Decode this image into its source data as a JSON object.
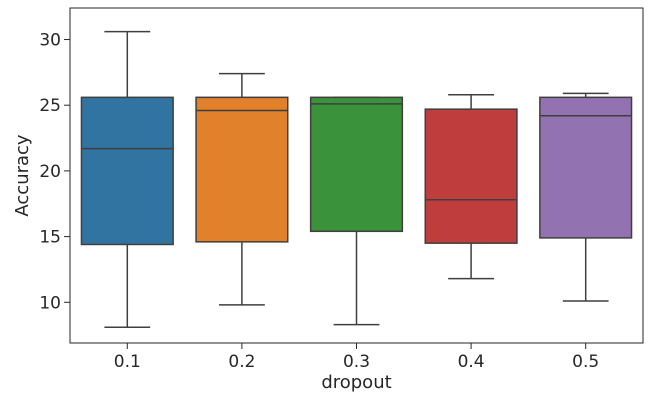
{
  "chart_data": {
    "type": "box",
    "title": "",
    "xlabel": "dropout",
    "ylabel": "Accuracy",
    "categories": [
      "0.1",
      "0.2",
      "0.3",
      "0.4",
      "0.5"
    ],
    "yticks": [
      "10",
      "15",
      "20",
      "25",
      "30"
    ],
    "ylim": [
      6.9,
      32.4
    ],
    "grid": false,
    "legend": "none",
    "boxes": [
      {
        "category": "0.1",
        "whisker_low": 8.1,
        "q1": 14.4,
        "median": 21.7,
        "q3": 25.6,
        "whisker_high": 30.6,
        "color": "#3274a1"
      },
      {
        "category": "0.2",
        "whisker_low": 9.8,
        "q1": 14.6,
        "median": 24.6,
        "q3": 25.6,
        "whisker_high": 27.4,
        "color": "#e1812c"
      },
      {
        "category": "0.3",
        "whisker_low": 8.3,
        "q1": 15.4,
        "median": 25.1,
        "q3": 25.6,
        "whisker_high": 25.6,
        "color": "#3a923a"
      },
      {
        "category": "0.4",
        "whisker_low": 11.8,
        "q1": 14.5,
        "median": 17.8,
        "q3": 24.7,
        "whisker_high": 25.8,
        "color": "#c03d3e"
      },
      {
        "category": "0.5",
        "whisker_low": 10.1,
        "q1": 14.9,
        "median": 24.2,
        "q3": 25.6,
        "whisker_high": 25.9,
        "color": "#9372b2"
      }
    ]
  }
}
